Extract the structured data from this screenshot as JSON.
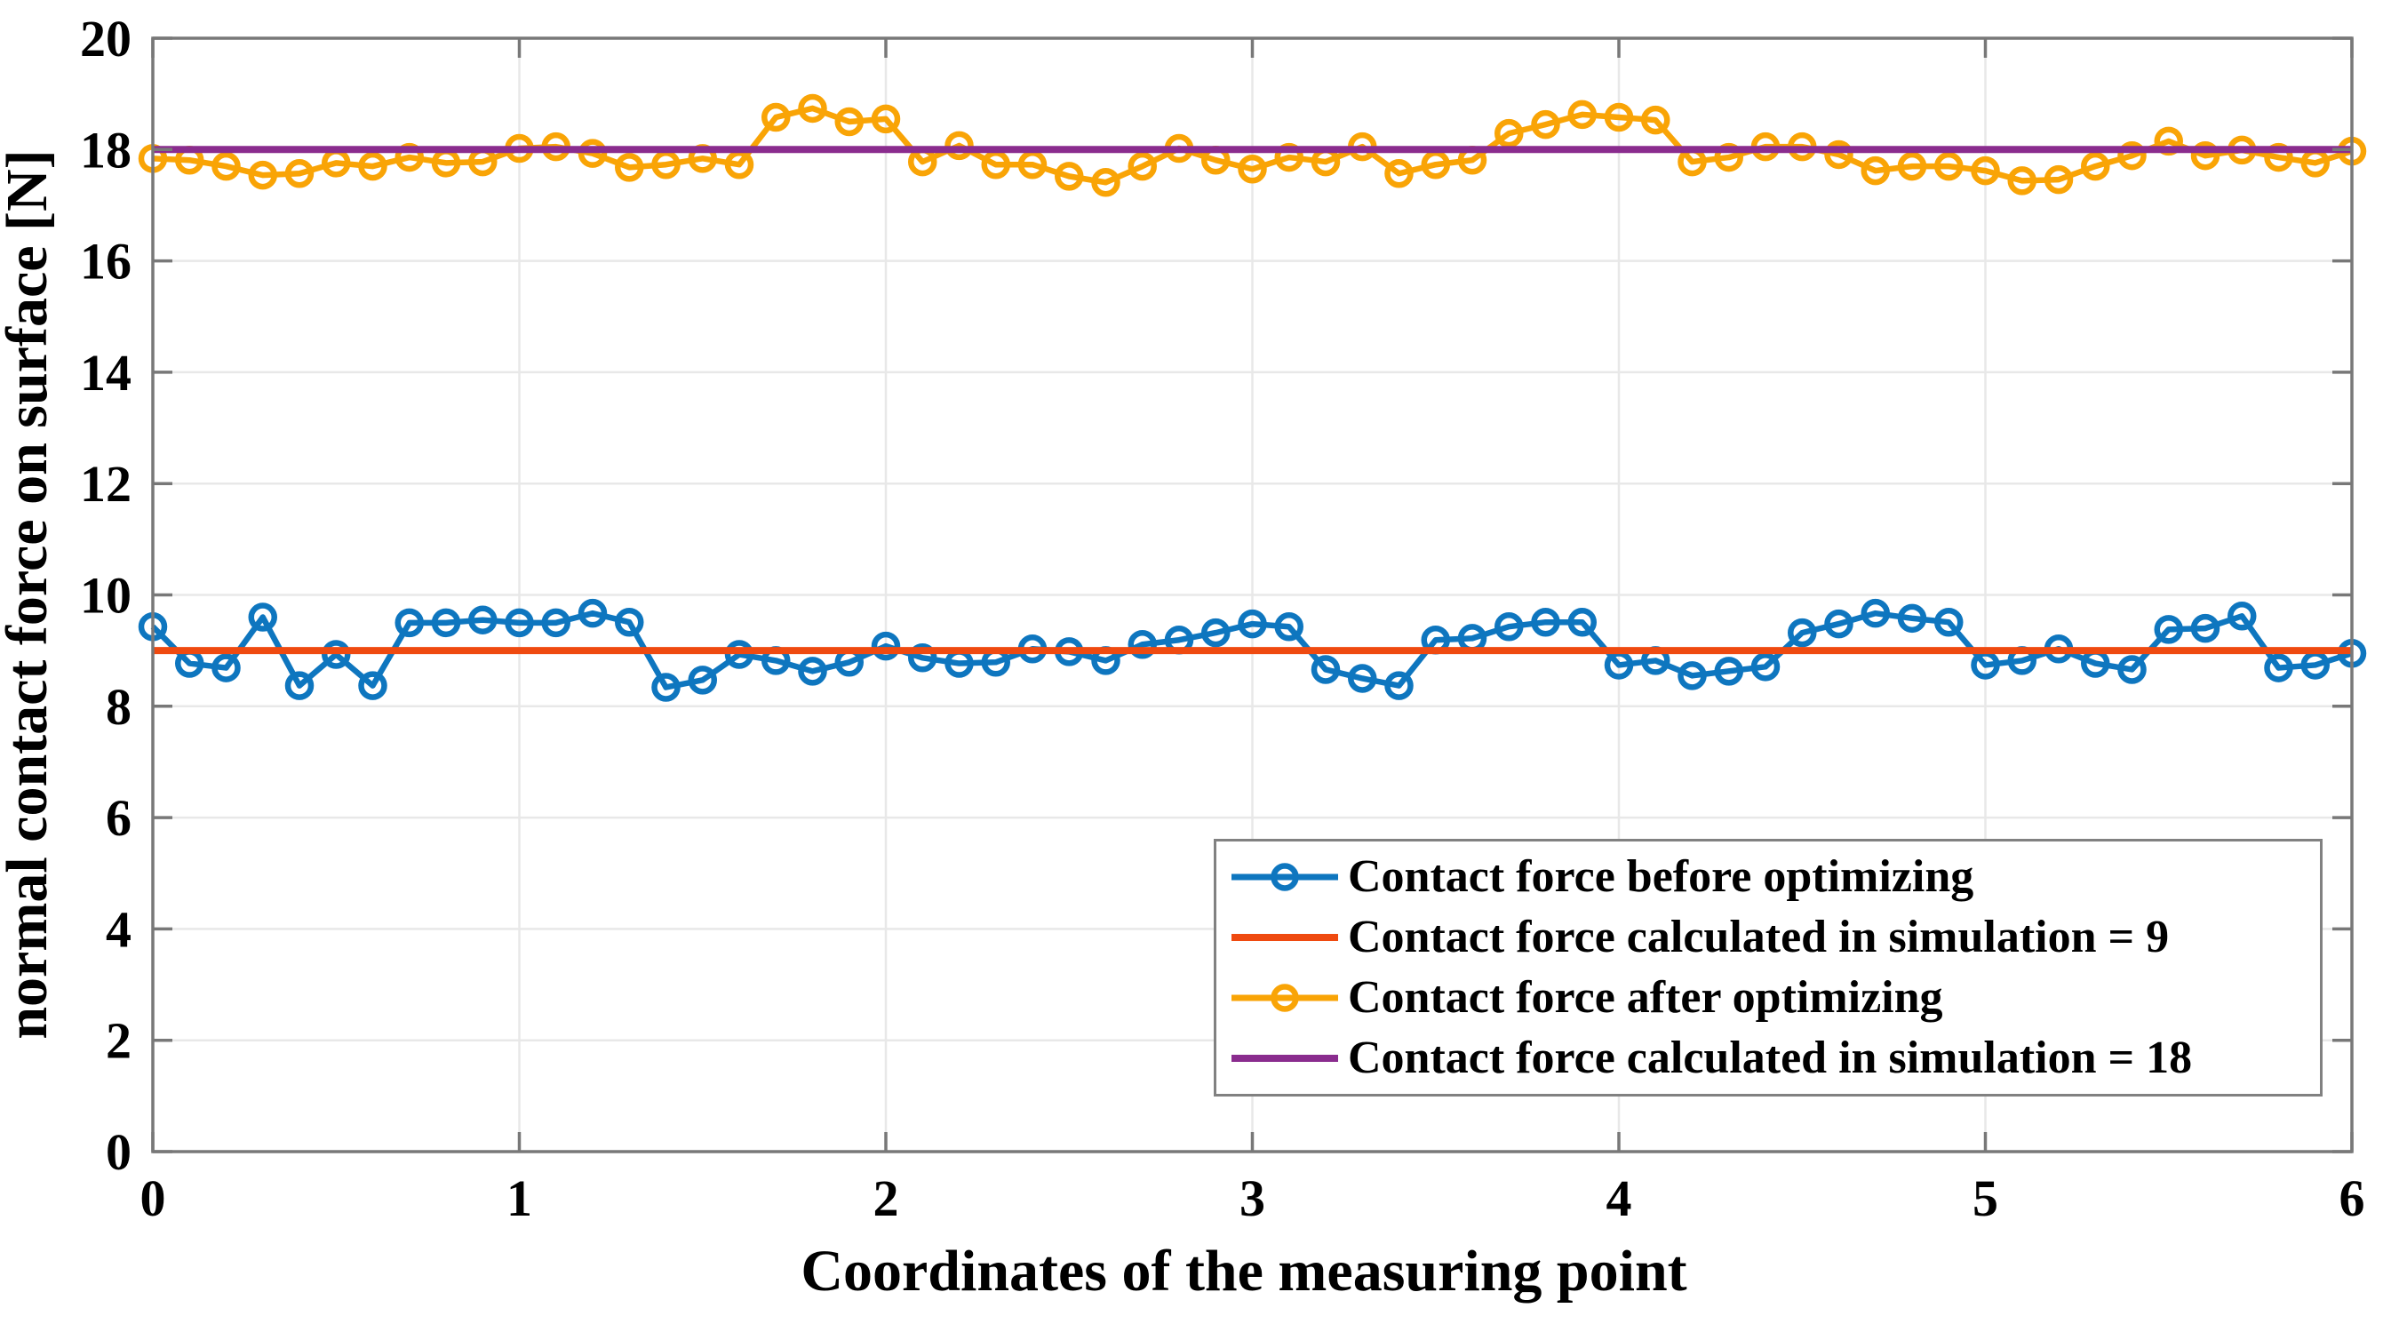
{
  "figure": {
    "background": "#ffffff",
    "axis_color": "#787878",
    "grid_color": "#e8e8e8",
    "text_color": "#000000"
  },
  "chart_data": {
    "type": "line",
    "title": "",
    "xlabel": "Coordinates of the measuring point",
    "ylabel": "normal contact force on surface [N]",
    "xlim": [
      0,
      6
    ],
    "ylim": [
      0,
      20
    ],
    "x_ticks": [
      0,
      1,
      2,
      3,
      4,
      5,
      6
    ],
    "y_ticks": [
      0,
      2,
      4,
      6,
      8,
      10,
      12,
      14,
      16,
      18,
      20
    ],
    "grid": true,
    "legend_position": "lower right",
    "x_start": 0,
    "x_step": 0.1,
    "series": [
      {
        "name": "Contact force before optimizing",
        "color": "#0e76bf",
        "marker": "o",
        "line_width": 6.5,
        "values": [
          9.43,
          8.77,
          8.69,
          9.6,
          8.37,
          8.93,
          8.37,
          9.5,
          9.5,
          9.55,
          9.5,
          9.5,
          9.67,
          9.51,
          8.34,
          8.47,
          8.93,
          8.82,
          8.63,
          8.79,
          9.08,
          8.87,
          8.77,
          8.79,
          9.03,
          8.98,
          8.82,
          9.11,
          9.19,
          9.32,
          9.48,
          9.43,
          8.66,
          8.5,
          8.37,
          9.19,
          9.22,
          9.43,
          9.51,
          9.51,
          8.74,
          8.82,
          8.55,
          8.63,
          8.71,
          9.32,
          9.48,
          9.67,
          9.58,
          9.51,
          8.74,
          8.82,
          9.03,
          8.77,
          8.66,
          9.38,
          9.4,
          9.62,
          8.69,
          8.74,
          8.95
        ]
      },
      {
        "name": "Contact force calculated in simulation = 9",
        "color": "#ef4a10",
        "marker": "none",
        "line_width": 8,
        "constant": 9
      },
      {
        "name": "Contact force after optimizing",
        "color": "#f9a406",
        "marker": "o",
        "line_width": 6.5,
        "values": [
          17.84,
          17.81,
          17.7,
          17.54,
          17.57,
          17.76,
          17.7,
          17.86,
          17.76,
          17.78,
          18.02,
          18.05,
          17.93,
          17.68,
          17.73,
          17.84,
          17.73,
          18.58,
          18.74,
          18.5,
          18.55,
          17.78,
          18.07,
          17.73,
          17.73,
          17.52,
          17.41,
          17.7,
          18.02,
          17.81,
          17.65,
          17.86,
          17.78,
          18.05,
          17.57,
          17.73,
          17.81,
          18.29,
          18.45,
          18.63,
          18.58,
          18.53,
          17.78,
          17.86,
          18.05,
          18.05,
          17.91,
          17.62,
          17.7,
          17.7,
          17.62,
          17.44,
          17.46,
          17.7,
          17.89,
          18.15,
          17.89,
          17.99,
          17.86,
          17.76,
          17.97
        ]
      },
      {
        "name": "Contact force calculated in simulation = 18",
        "color": "#8a2c8e",
        "marker": "none",
        "line_width": 8,
        "constant": 18
      }
    ]
  }
}
